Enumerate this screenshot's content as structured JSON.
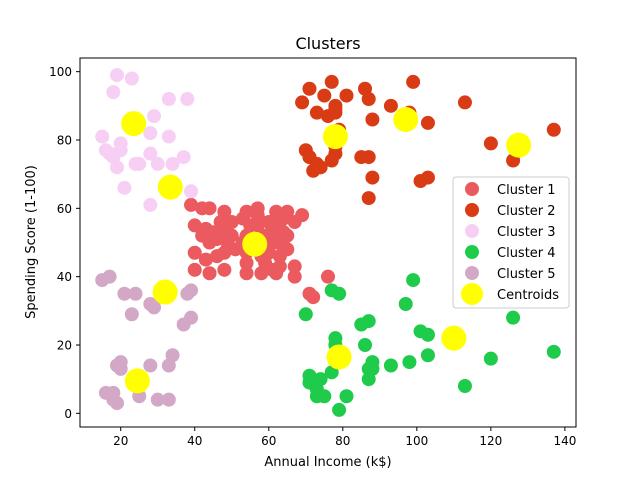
{
  "chart_data": {
    "type": "scatter",
    "title": "Clusters",
    "xlabel": "Annual Income (k$)",
    "ylabel": "Spending Score (1-100)",
    "xlim": [
      9,
      143
    ],
    "ylim": [
      -4,
      104
    ],
    "xticks": [
      20,
      40,
      60,
      80,
      100,
      120,
      140
    ],
    "yticks": [
      0,
      20,
      40,
      60,
      80,
      100
    ],
    "grid": false,
    "legend_position": "right",
    "series": [
      {
        "name": "Cluster 1",
        "color": "#ea5a5e",
        "points": [
          [
            39,
            61
          ],
          [
            40,
            55
          ],
          [
            40,
            47
          ],
          [
            40,
            42
          ],
          [
            42,
            52
          ],
          [
            42,
            60
          ],
          [
            43,
            54
          ],
          [
            43,
            45
          ],
          [
            44,
            60
          ],
          [
            44,
            41
          ],
          [
            44,
            50
          ],
          [
            45,
            53
          ],
          [
            46,
            51
          ],
          [
            46,
            46
          ],
          [
            47,
            56
          ],
          [
            47,
            52
          ],
          [
            48,
            59
          ],
          [
            48,
            47
          ],
          [
            48,
            55
          ],
          [
            48,
            42
          ],
          [
            49,
            49
          ],
          [
            50,
            56
          ],
          [
            50,
            52
          ],
          [
            51,
            48
          ],
          [
            53,
            57
          ],
          [
            53,
            50
          ],
          [
            54,
            59
          ],
          [
            54,
            52
          ],
          [
            54,
            47
          ],
          [
            54,
            44
          ],
          [
            54,
            41
          ],
          [
            55,
            55
          ],
          [
            56,
            48
          ],
          [
            56,
            51
          ],
          [
            57,
            60
          ],
          [
            57,
            58
          ],
          [
            57,
            55
          ],
          [
            58,
            46
          ],
          [
            58,
            41
          ],
          [
            59,
            52
          ],
          [
            60,
            56
          ],
          [
            60,
            49
          ],
          [
            60,
            47
          ],
          [
            61,
            42
          ],
          [
            62,
            52
          ],
          [
            62,
            50
          ],
          [
            62,
            41
          ],
          [
            62,
            59
          ],
          [
            63,
            56
          ],
          [
            63,
            46
          ],
          [
            63,
            43
          ],
          [
            64,
            57
          ],
          [
            64,
            49
          ],
          [
            64,
            53
          ],
          [
            65,
            48
          ],
          [
            65,
            52
          ],
          [
            65,
            59
          ],
          [
            67,
            56
          ],
          [
            67,
            40
          ],
          [
            67,
            43
          ],
          [
            69,
            58
          ],
          [
            71,
            35
          ],
          [
            72,
            34
          ],
          [
            76,
            40
          ],
          [
            59,
            44
          ],
          [
            61,
            54
          ]
        ]
      },
      {
        "name": "Cluster 2",
        "color": "#d93b15",
        "points": [
          [
            69,
            91
          ],
          [
            70,
            77
          ],
          [
            71,
            95
          ],
          [
            71,
            75
          ],
          [
            71,
            75
          ],
          [
            72,
            71
          ],
          [
            73,
            88
          ],
          [
            73,
            73
          ],
          [
            74,
            72
          ],
          [
            75,
            93
          ],
          [
            76,
            87
          ],
          [
            77,
            97
          ],
          [
            77,
            74
          ],
          [
            78,
            90
          ],
          [
            78,
            88
          ],
          [
            78,
            76
          ],
          [
            78,
            89
          ],
          [
            78,
            78
          ],
          [
            79,
            83
          ],
          [
            81,
            93
          ],
          [
            85,
            75
          ],
          [
            86,
            95
          ],
          [
            87,
            63
          ],
          [
            87,
            75
          ],
          [
            87,
            92
          ],
          [
            88,
            86
          ],
          [
            88,
            69
          ],
          [
            93,
            90
          ],
          [
            97,
            86
          ],
          [
            98,
            88
          ],
          [
            99,
            97
          ],
          [
            101,
            68
          ],
          [
            103,
            85
          ],
          [
            103,
            69
          ],
          [
            113,
            91
          ],
          [
            120,
            79
          ],
          [
            126,
            74
          ],
          [
            137,
            83
          ]
        ]
      },
      {
        "name": "Cluster 3",
        "color": "#f7cff4",
        "points": [
          [
            15,
            81
          ],
          [
            16,
            77
          ],
          [
            17,
            76
          ],
          [
            18,
            94
          ],
          [
            19,
            72
          ],
          [
            19,
            99
          ],
          [
            20,
            77
          ],
          [
            20,
            79
          ],
          [
            21,
            66
          ],
          [
            23,
            98
          ],
          [
            24,
            73
          ],
          [
            25,
            73
          ],
          [
            28,
            82
          ],
          [
            28,
            61
          ],
          [
            29,
            87
          ],
          [
            30,
            73
          ],
          [
            33,
            92
          ],
          [
            33,
            81
          ],
          [
            34,
            73
          ],
          [
            37,
            75
          ],
          [
            38,
            92
          ],
          [
            39,
            65
          ],
          [
            28,
            76
          ],
          [
            18,
            75
          ]
        ]
      },
      {
        "name": "Cluster 4",
        "color": "#1fcb4a",
        "points": [
          [
            70,
            29
          ],
          [
            71,
            11
          ],
          [
            71,
            9
          ],
          [
            73,
            5
          ],
          [
            73,
            7
          ],
          [
            74,
            10
          ],
          [
            75,
            5
          ],
          [
            77,
            12
          ],
          [
            77,
            36
          ],
          [
            78,
            22
          ],
          [
            78,
            17
          ],
          [
            78,
            20
          ],
          [
            79,
            35
          ],
          [
            79,
            1
          ],
          [
            81,
            5
          ],
          [
            85,
            26
          ],
          [
            86,
            20
          ],
          [
            87,
            27
          ],
          [
            87,
            13
          ],
          [
            87,
            10
          ],
          [
            88,
            13
          ],
          [
            88,
            15
          ],
          [
            93,
            14
          ],
          [
            97,
            32
          ],
          [
            98,
            15
          ],
          [
            99,
            39
          ],
          [
            101,
            24
          ],
          [
            103,
            17
          ],
          [
            103,
            23
          ],
          [
            113,
            8
          ],
          [
            120,
            16
          ],
          [
            126,
            28
          ],
          [
            137,
            18
          ]
        ]
      },
      {
        "name": "Cluster 5",
        "color": "#d3a8c6",
        "points": [
          [
            15,
            39
          ],
          [
            16,
            6
          ],
          [
            17,
            40
          ],
          [
            18,
            6
          ],
          [
            19,
            3
          ],
          [
            19,
            14
          ],
          [
            20,
            15
          ],
          [
            20,
            13
          ],
          [
            21,
            35
          ],
          [
            23,
            29
          ],
          [
            24,
            35
          ],
          [
            25,
            5
          ],
          [
            28,
            14
          ],
          [
            28,
            32
          ],
          [
            29,
            31
          ],
          [
            30,
            4
          ],
          [
            33,
            4
          ],
          [
            33,
            14
          ],
          [
            34,
            17
          ],
          [
            37,
            26
          ],
          [
            38,
            35
          ],
          [
            39,
            36
          ],
          [
            39,
            28
          ],
          [
            18,
            4
          ]
        ]
      }
    ],
    "centroids": {
      "name": "Centroids",
      "color": "#ffff00",
      "points": [
        [
          23.5,
          84.8
        ],
        [
          33.4,
          66.2
        ],
        [
          56.2,
          49.5
        ],
        [
          78,
          81
        ],
        [
          97,
          86
        ],
        [
          127.5,
          78.5
        ],
        [
          32,
          35.5
        ],
        [
          24.5,
          9.5
        ],
        [
          79,
          16.5
        ],
        [
          110,
          22
        ]
      ]
    }
  }
}
